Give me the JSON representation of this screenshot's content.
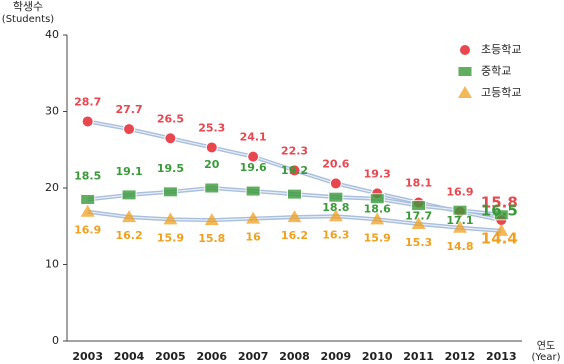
{
  "chart_data": {
    "type": "line",
    "y_label": [
      "학생수",
      "(Students)"
    ],
    "x_label": [
      "연도",
      "(Year)"
    ],
    "categories": [
      "2003",
      "2004",
      "2005",
      "2006",
      "2007",
      "2008",
      "2009",
      "2010",
      "2011",
      "2012",
      "2013"
    ],
    "series": [
      {
        "name": "초등학교",
        "color": "#e8474f",
        "marker": "circle",
        "values": [
          28.7,
          27.7,
          26.5,
          25.3,
          24.1,
          22.3,
          20.6,
          19.3,
          18.1,
          16.9,
          15.8
        ]
      },
      {
        "name": "중학교",
        "color": "#3a9a3a",
        "marker": "square",
        "values": [
          18.5,
          19.1,
          19.5,
          20,
          19.6,
          19.2,
          18.8,
          18.6,
          17.7,
          17.1,
          16.5
        ]
      },
      {
        "name": "고등학교",
        "color": "#f0a020",
        "marker": "triangle",
        "values": [
          16.9,
          16.2,
          15.9,
          15.8,
          16,
          16.2,
          16.3,
          15.9,
          15.3,
          14.8,
          14.4
        ]
      }
    ],
    "ylim": [
      0,
      40
    ],
    "yticks": [
      0,
      10,
      20,
      30,
      40
    ],
    "grid": false,
    "legend": "upper right"
  }
}
